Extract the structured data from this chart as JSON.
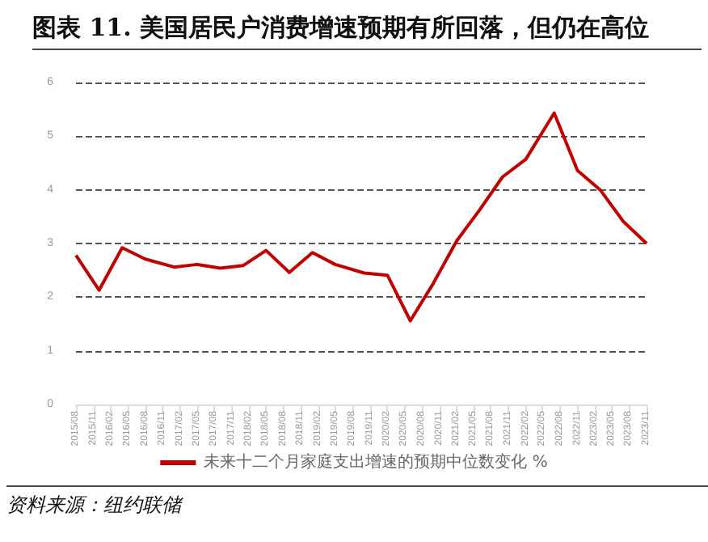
{
  "chart_data": {
    "type": "line",
    "title": "图表 11. 美国居民户消费增速预期有所回落，但仍在高位",
    "annotations": [
      "资料来源：纽约联储"
    ],
    "x": [
      "2015-08",
      "2015-12",
      "2016-04",
      "2016-08",
      "2017-01",
      "2017-05",
      "2017-09",
      "2018-01",
      "2018-05",
      "2018-09",
      "2019-01",
      "2019-05",
      "2019-10",
      "2020-02",
      "2020-06",
      "2020-10",
      "2021-02",
      "2021-06",
      "2021-10",
      "2022-02",
      "2022-07",
      "2022-11",
      "2023-03",
      "2023-07",
      "2023-11"
    ],
    "series": [
      {
        "name": "未来十二个月家庭支出增速的预期中位数变化 %",
        "color": "#c00000",
        "values": [
          2.78,
          2.13,
          2.92,
          2.71,
          2.56,
          2.61,
          2.54,
          2.59,
          2.87,
          2.46,
          2.83,
          2.61,
          2.45,
          2.41,
          1.56,
          2.26,
          3.05,
          3.62,
          4.24,
          4.57,
          5.43,
          4.36,
          4.0,
          3.41,
          3.0
        ]
      }
    ],
    "xlim": [
      "2015-08",
      "2023-11"
    ],
    "xticks": [
      {
        "value": "2015-08",
        "label": "2015/08"
      },
      {
        "value": "2015-11",
        "label": "2015/11"
      },
      {
        "value": "2016-02",
        "label": "2016/02"
      },
      {
        "value": "2016-05",
        "label": "2016/05"
      },
      {
        "value": "2016-08",
        "label": "2016/08"
      },
      {
        "value": "2016-11",
        "label": "2016/11"
      },
      {
        "value": "2017-02",
        "label": "2017/02"
      },
      {
        "value": "2017-05",
        "label": "2017/05"
      },
      {
        "value": "2017-08",
        "label": "2017/08"
      },
      {
        "value": "2017-11",
        "label": "2017/11"
      },
      {
        "value": "2018-02",
        "label": "2018/02"
      },
      {
        "value": "2018-05",
        "label": "2018/05"
      },
      {
        "value": "2018-08",
        "label": "2018/08"
      },
      {
        "value": "2018-11",
        "label": "2018/11"
      },
      {
        "value": "2019-02",
        "label": "2019/02"
      },
      {
        "value": "2019-05",
        "label": "2019/05"
      },
      {
        "value": "2019-08",
        "label": "2019/08"
      },
      {
        "value": "2019-11",
        "label": "2019/11"
      },
      {
        "value": "2020-02",
        "label": "2020/02"
      },
      {
        "value": "2020-05",
        "label": "2020/05"
      },
      {
        "value": "2020-08",
        "label": "2020/08"
      },
      {
        "value": "2020-11",
        "label": "2020/11"
      },
      {
        "value": "2021-02",
        "label": "2021/02"
      },
      {
        "value": "2021-05",
        "label": "2021/05"
      },
      {
        "value": "2021-08",
        "label": "2021/08"
      },
      {
        "value": "2021-11",
        "label": "2021/11"
      },
      {
        "value": "2022-02",
        "label": "2022/02"
      },
      {
        "value": "2022-05",
        "label": "2022/05"
      },
      {
        "value": "2022-08",
        "label": "2022/08"
      },
      {
        "value": "2022-11",
        "label": "2022/11"
      },
      {
        "value": "2023-02",
        "label": "2023/02"
      },
      {
        "value": "2023-05",
        "label": "2023/05"
      },
      {
        "value": "2023-08",
        "label": "2023/08"
      },
      {
        "value": "2023-11",
        "label": "2023/11"
      }
    ],
    "ylim": [
      0,
      6
    ],
    "yticks": [
      0,
      1,
      2,
      3,
      4,
      5,
      6
    ],
    "grid": "y",
    "legend": "bottom",
    "marker": "none",
    "line_style": "solid"
  }
}
